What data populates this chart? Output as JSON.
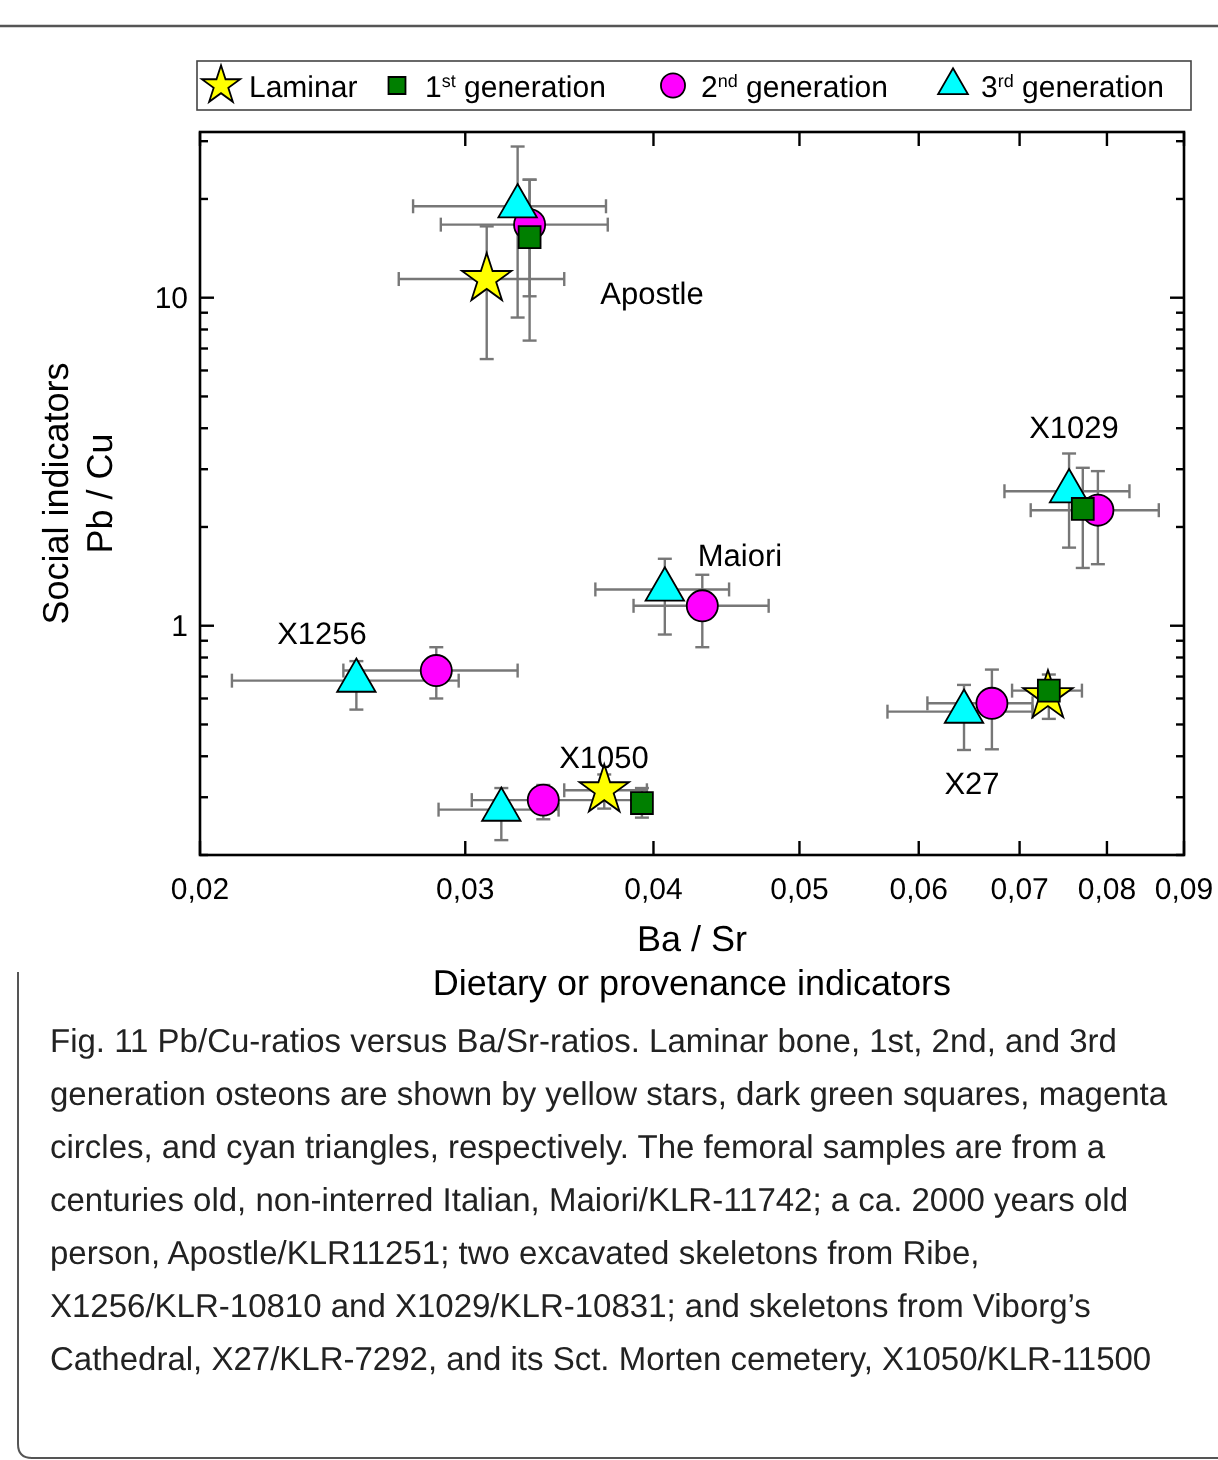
{
  "chart_data": {
    "type": "scatter",
    "xlabel": "Ba / Sr\nDietary or provenance indicators",
    "ylabel": "Social indicators\nPb / Cu",
    "log": "xy",
    "legend": "top",
    "grid": false,
    "xlim": [
      0.02,
      0.09
    ],
    "xticks": [
      {
        "value": 0.02,
        "label": "0,02"
      },
      {
        "value": 0.03,
        "label": "0,03"
      },
      {
        "value": 0.04,
        "label": "0,04"
      },
      {
        "value": 0.05,
        "label": "0,05"
      },
      {
        "value": 0.06,
        "label": "0,06"
      },
      {
        "value": 0.07,
        "label": "0,07"
      },
      {
        "value": 0.08,
        "label": "0,08"
      },
      {
        "value": 0.09,
        "label": "0,09"
      }
    ],
    "ylim": [
      0.2,
      32
    ],
    "yticks": [
      {
        "value": 0.2,
        "label": null
      },
      {
        "value": 0.3,
        "label": null
      },
      {
        "value": 0.4,
        "label": null
      },
      {
        "value": 0.5,
        "label": null
      },
      {
        "value": 0.6,
        "label": null
      },
      {
        "value": 0.7,
        "label": null
      },
      {
        "value": 0.8,
        "label": null
      },
      {
        "value": 0.9,
        "label": null
      },
      1,
      {
        "value": 2,
        "label": null
      },
      {
        "value": 3,
        "label": null
      },
      {
        "value": 4,
        "label": null
      },
      {
        "value": 5,
        "label": null
      },
      {
        "value": 6,
        "label": null
      },
      {
        "value": 7,
        "label": null
      },
      {
        "value": 8,
        "label": null
      },
      {
        "value": 9,
        "label": null
      },
      10,
      {
        "value": 20,
        "label": null
      },
      {
        "value": 30,
        "label": null
      }
    ],
    "series": [
      {
        "name": "Laminar",
        "color": "#ffff00",
        "marker": "star",
        "x": [
          0.031,
          0.0371,
          0.0731
        ],
        "values": [
          11.4,
          0.315,
          0.61
        ],
        "errors": [
          [
            6.5,
            16.5
          ],
          [
            0.277,
            0.352
          ],
          null
        ],
        "xerrors": [
          [
            0.0271,
            0.0349
          ],
          [
            0.0349,
            0.0396
          ],
          null
        ]
      },
      {
        "name": "1$^{st}$ generation",
        "color": "#007f00",
        "marker": "square",
        "x": [
          0.0331,
          0.0393,
          0.0732,
          0.0771
        ],
        "values": [
          15.3,
          0.288,
          0.634,
          2.27
        ],
        "errors": [
          [
            10.1,
            22.9
          ],
          [
            0.26,
            0.32
          ],
          [
            0.52,
            0.71
          ],
          [
            1.5,
            3.03
          ]
        ],
        "xerrors": [
          null,
          null,
          [
            0.0692,
            0.077
          ],
          null
        ]
      },
      {
        "name": "2$^{nd}$ generation",
        "color": "#ff00ff",
        "marker": "circle",
        "x": [
          0.0331,
          0.0431,
          0.0287,
          0.0338,
          0.0671,
          0.0789
        ],
        "values": [
          16.7,
          1.15,
          0.73,
          0.294,
          0.58,
          2.25
        ],
        "errors": [
          [
            7.4,
            22.9
          ],
          [
            0.86,
            1.43
          ],
          [
            0.6,
            0.86
          ],
          [
            0.257,
            0.327
          ],
          [
            0.42,
            0.735
          ],
          [
            1.54,
            2.96
          ]
        ],
        "xerrors": [
          [
            0.0289,
            0.0373
          ],
          [
            0.0388,
            0.0477
          ],
          [
            0.0249,
            0.0325
          ],
          [
            0.0303,
            0.0397
          ],
          [
            0.0608,
            0.0714
          ],
          [
            0.0712,
            0.0866
          ]
        ]
      },
      {
        "name": "3$^{rd}$ generation",
        "color": "#00ffff",
        "marker": "triangle",
        "x": [
          0.0325,
          0.0407,
          0.0254,
          0.0317,
          0.0643,
          0.0755
        ],
        "values": [
          19.0,
          1.29,
          0.68,
          0.275,
          0.547,
          2.57
        ],
        "errors": [
          [
            8.7,
            28.9
          ],
          [
            0.94,
            1.6
          ],
          [
            0.555,
            0.78
          ],
          [
            0.222,
            0.32
          ],
          [
            0.418,
            0.66
          ],
          [
            1.73,
            3.35
          ]
        ],
        "xerrors": [
          [
            0.0277,
            0.0372
          ],
          [
            0.0366,
            0.0449
          ],
          [
            0.021,
            0.0297
          ],
          [
            0.0288,
            0.0346
          ],
          [
            0.0572,
            0.0714
          ],
          [
            0.0684,
            0.0828
          ]
        ]
      }
    ],
    "annotations": [
      "Apostle",
      "Maiori",
      "X1256",
      "X1050",
      "X27",
      "X1029",
      "Fig. 11  Pb/Cu-ratios versus Ba/Sr-ratios. Laminar bone,  1st, 2nd, and 3rd  generation osteons are shown by yellow stars, dark green squares, magenta circles, and cyan triangles, respectively. The femoral samples are from a centuries old, non-interred Italian, Maiori/KLR-11742; a ca. 2000 years old person, Apostle/KLR11251; two excavated skeletons from Ribe, X1256/KLR-10810 and X1029/KLR-10831; and skeletons from Viborg’s Cathedral, X27/KLR-7292, and its Sct. Morten cemetery, X1050/KLR-11500"
    ]
  }
}
